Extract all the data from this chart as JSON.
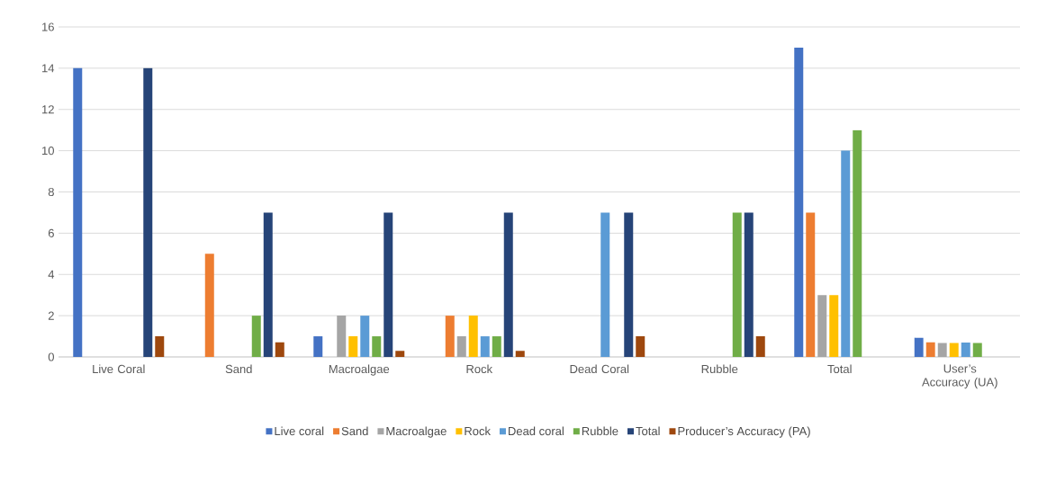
{
  "chart_data": {
    "type": "bar",
    "categories": [
      "Live Coral",
      "Sand",
      "Macroalgae",
      "Rock",
      "Dead Coral",
      "Rubble",
      "Total",
      "User’s Accuracy (UA)"
    ],
    "series": [
      {
        "name": "Live coral",
        "color": "#4472c4",
        "values": [
          14,
          0,
          1,
          0,
          0,
          0,
          15,
          0.93
        ]
      },
      {
        "name": "Sand",
        "color": "#ed7d31",
        "values": [
          0,
          5,
          0,
          2,
          0,
          0,
          7,
          0.71
        ]
      },
      {
        "name": "Macroalgae",
        "color": "#a5a5a5",
        "values": [
          0,
          0,
          2,
          1,
          0,
          0,
          3,
          0.67
        ]
      },
      {
        "name": "Rock",
        "color": "#ffc000",
        "values": [
          0,
          0,
          1,
          2,
          0,
          0,
          3,
          0.67
        ]
      },
      {
        "name": "Dead coral",
        "color": "#5b9bd5",
        "values": [
          0,
          0,
          2,
          1,
          7,
          0,
          10,
          0.7
        ]
      },
      {
        "name": "Rubble",
        "color": "#70ad47",
        "values": [
          0,
          2,
          1,
          1,
          0,
          7,
          11,
          0.67
        ]
      },
      {
        "name": "Total",
        "color": "#264478",
        "values": [
          14,
          7,
          7,
          7,
          7,
          7,
          null,
          null
        ]
      },
      {
        "name": "Producer’s Accuracy (PA)",
        "color": "#9e480e",
        "values": [
          1,
          0.71,
          0.29,
          0.29,
          1,
          1,
          null,
          null
        ]
      }
    ],
    "ylim": [
      0,
      16
    ],
    "yticks": [
      0,
      2,
      4,
      6,
      8,
      10,
      12,
      14,
      16
    ],
    "grid": "y",
    "legend": "bottom"
  }
}
